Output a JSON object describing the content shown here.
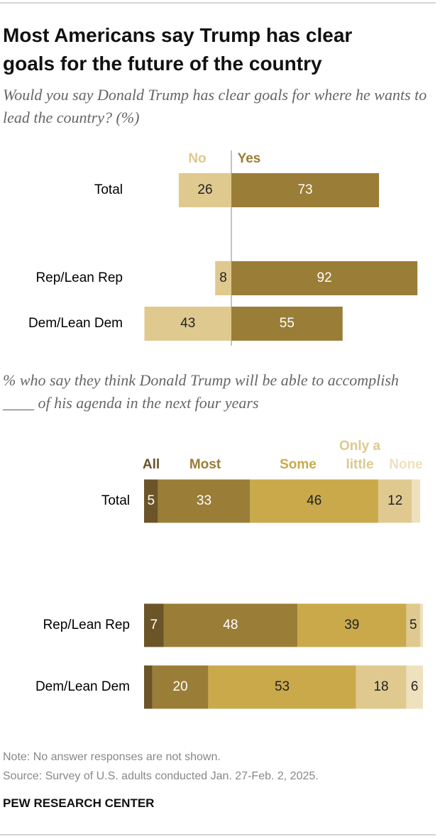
{
  "title": "Most Americans say Trump has clear goals for the future of the country",
  "chart_data": [
    {
      "type": "diverging-bar",
      "subtitle": "Would you say Donald Trump has clear goals for where he wants to lead the country? (%)",
      "categories": [
        "Total",
        "Rep/Lean Rep",
        "Dem/Lean Dem"
      ],
      "series": [
        {
          "name": "No",
          "color": "#dfc98f",
          "values": [
            26,
            8,
            43
          ]
        },
        {
          "name": "Yes",
          "color": "#9a7d37",
          "values": [
            73,
            92,
            55
          ]
        }
      ]
    },
    {
      "type": "stacked-bar",
      "subtitle": "% who say they think Donald Trump will be able to accomplish ____ of his agenda in the next four years",
      "categories": [
        "Total",
        "Rep/Lean Rep",
        "Dem/Lean Dem"
      ],
      "series": [
        {
          "name": "All",
          "color": "#6b5427",
          "values": [
            5,
            7,
            3
          ]
        },
        {
          "name": "Most",
          "color": "#9a7d37",
          "values": [
            33,
            48,
            20
          ]
        },
        {
          "name": "Some",
          "color": "#c9a94a",
          "values": [
            46,
            39,
            53
          ]
        },
        {
          "name": "Only a little",
          "color": "#dfc98f",
          "values": [
            12,
            5,
            18
          ]
        },
        {
          "name": "None",
          "color": "#eee1bd",
          "values": [
            3,
            1,
            6
          ]
        }
      ]
    }
  ],
  "note": "Note: No answer responses are not shown.",
  "source": "Source: Survey of U.S. adults conducted Jan. 27-Feb. 2, 2025.",
  "brand": "PEW RESEARCH CENTER"
}
